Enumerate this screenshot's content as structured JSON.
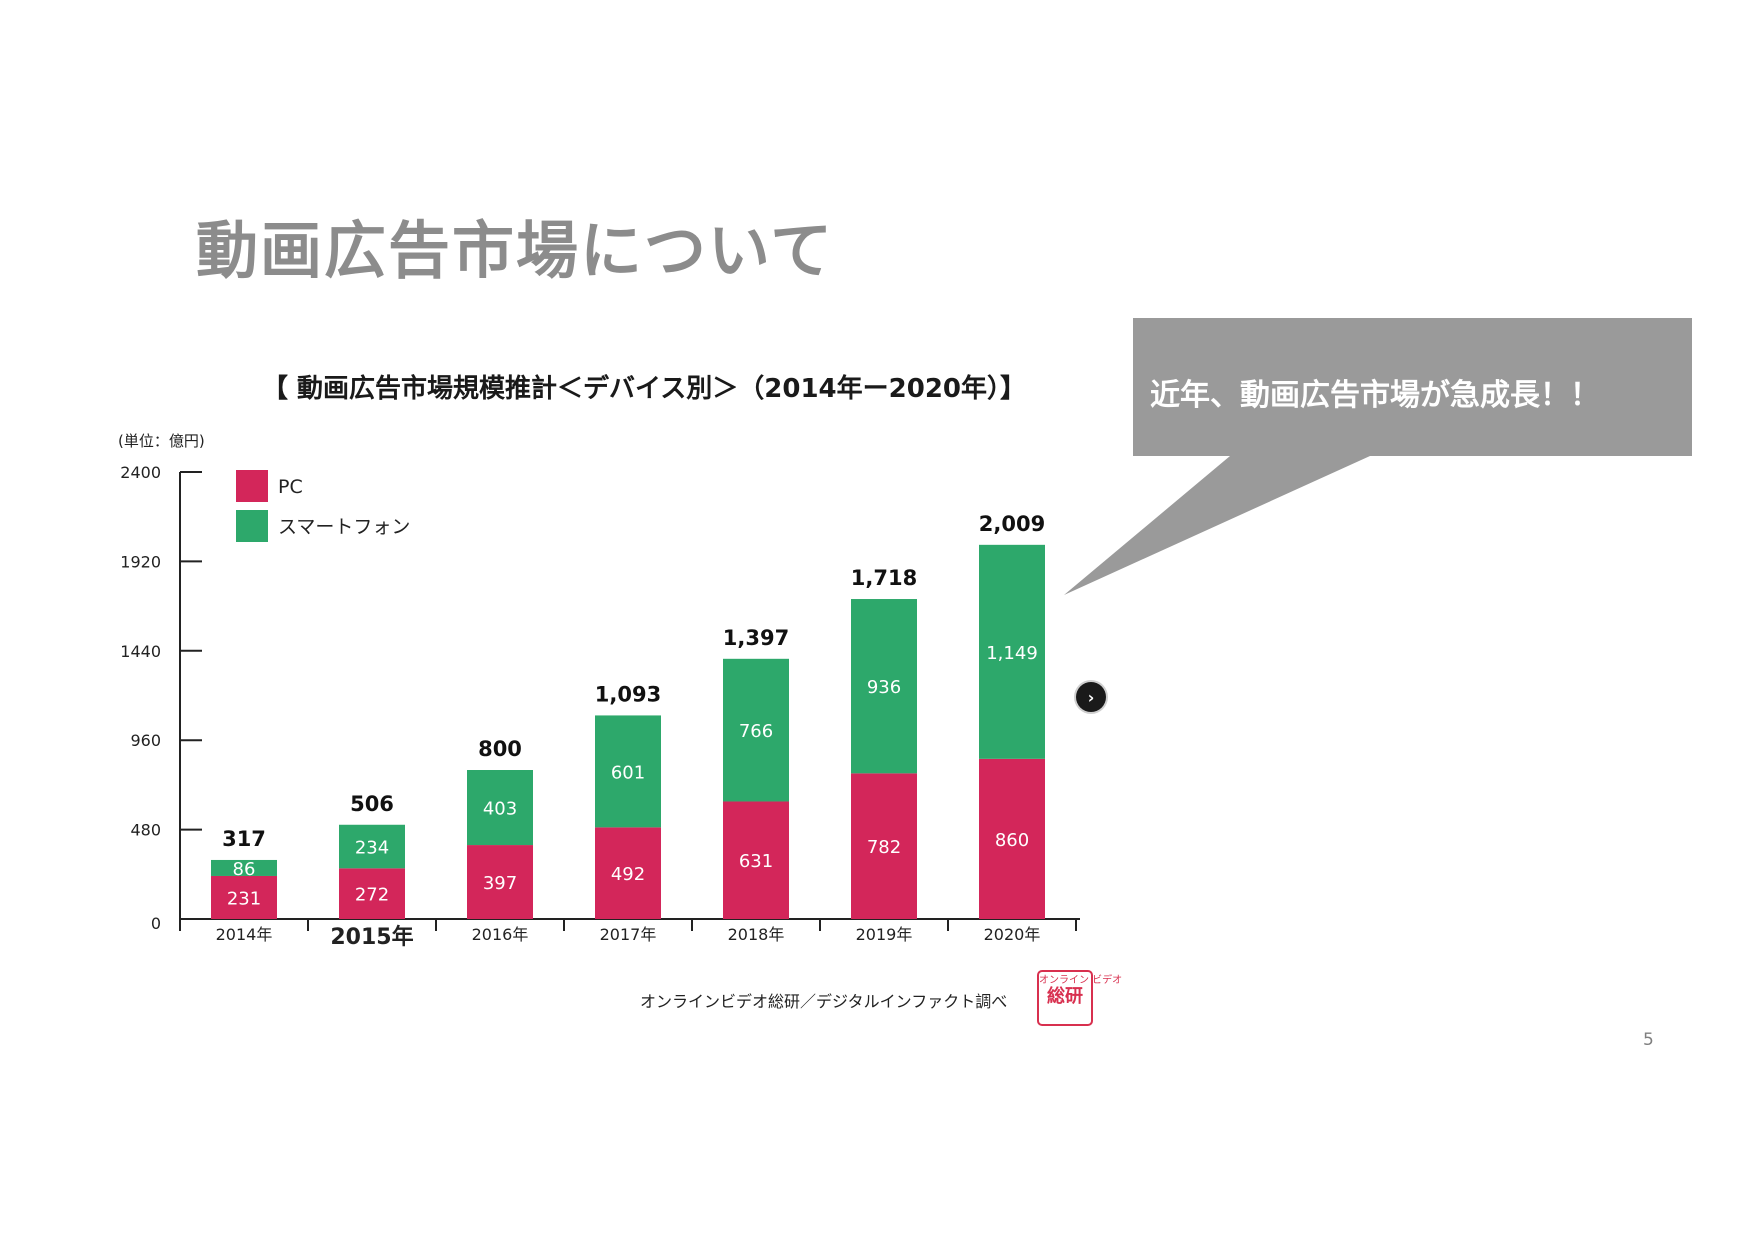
{
  "slide": {
    "title": "動画広告市場について",
    "page_number": "5"
  },
  "callout": {
    "text": "近年、動画広告市場が急成長！！",
    "color": "#9a9a9a"
  },
  "nav": {
    "icon": "chevron-right-icon",
    "glyph": "›"
  },
  "chart_data": {
    "type": "bar",
    "stacked": true,
    "title": "【 動画広告市場規模推計＜デバイス別＞（2014年ー2020年）】",
    "unit_label": "(単位：億円)",
    "categories": [
      "2014年",
      "2015年",
      "2016年",
      "2017年",
      "2018年",
      "2019年",
      "2020年"
    ],
    "highlight_category": "2015年",
    "series": [
      {
        "name": "PC",
        "color": "#d3265a",
        "values": [
          231,
          272,
          397,
          492,
          631,
          782,
          860
        ]
      },
      {
        "name": "スマートフォン",
        "color": "#2da86b",
        "values": [
          86,
          234,
          403,
          601,
          766,
          936,
          1149
        ]
      }
    ],
    "totals": [
      "317",
      "506",
      "800",
      "1,093",
      "1,397",
      "1,718",
      "2,009"
    ],
    "segment_labels": [
      [
        "231",
        "272",
        "397",
        "492",
        "631",
        "782",
        "860"
      ],
      [
        "86",
        "234",
        "403",
        "601",
        "766",
        "936",
        "1,149"
      ]
    ],
    "y_ticks": [
      "0",
      "480",
      "960",
      "1440",
      "1920",
      "2400"
    ],
    "ylim": [
      0,
      2400
    ],
    "legend_position": "top-left",
    "grid": false
  },
  "source": {
    "text": "オンラインビデオ総研／デジタルインファクト調べ",
    "stamp_top": "オンライン ビデオ",
    "stamp_bottom": "総研"
  }
}
